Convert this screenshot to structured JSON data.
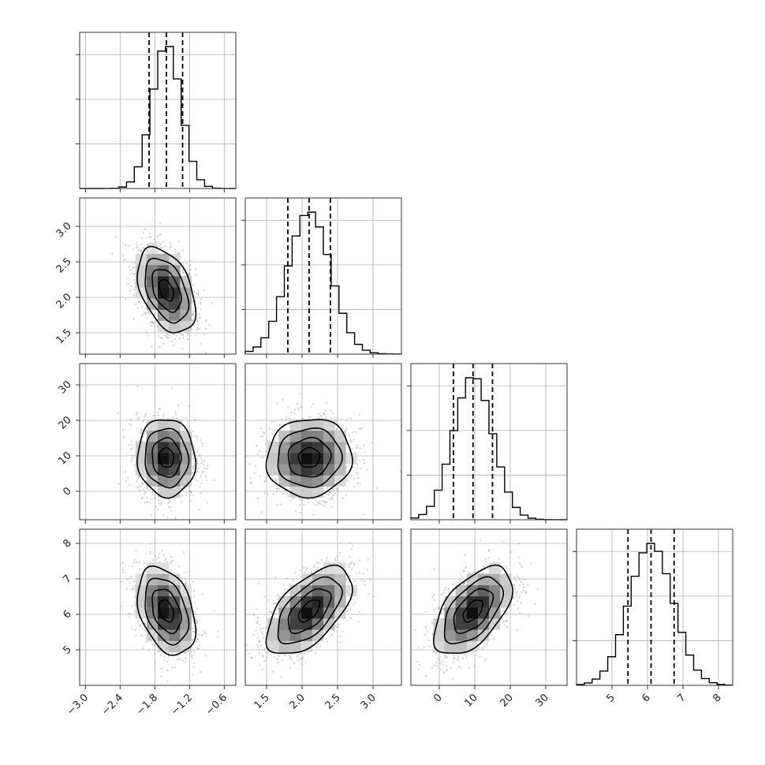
{
  "chart_data": {
    "type": "corner",
    "colors": {
      "ink": "#000000",
      "scatter": "#9a9a9a",
      "grid": "#b0b0b0"
    },
    "params": [
      {
        "mean": -1.6,
        "sd": 0.25,
        "range": [
          -3.1,
          -0.4
        ],
        "quantiles": [
          -1.9,
          -1.6,
          -1.32
        ],
        "ticks": [
          -3.0,
          -2.4,
          -1.8,
          -1.2,
          -0.6
        ],
        "tick_labels": [
          "−3.0",
          "−2.4",
          "−1.8",
          "−1.2",
          "−0.6"
        ]
      },
      {
        "mean": 2.1,
        "sd": 0.3,
        "range": [
          1.2,
          3.4
        ],
        "quantiles": [
          1.8,
          2.1,
          2.4
        ],
        "ticks": [
          1.5,
          2.0,
          2.5,
          3.0
        ],
        "tick_labels": [
          "1.5",
          "2.0",
          "2.5",
          "3.0"
        ]
      },
      {
        "mean": 9.5,
        "sd": 5.5,
        "range": [
          -8,
          36
        ],
        "quantiles": [
          4.0,
          9.5,
          15.0
        ],
        "ticks": [
          0,
          10,
          20,
          30
        ],
        "tick_labels": [
          "0",
          "10",
          "20",
          "30"
        ]
      },
      {
        "mean": 6.1,
        "sd": 0.62,
        "range": [
          4.0,
          8.4
        ],
        "quantiles": [
          5.45,
          6.1,
          6.75
        ],
        "ticks": [
          5,
          6,
          7,
          8
        ],
        "tick_labels": [
          "5",
          "6",
          "7",
          "8"
        ]
      }
    ],
    "correlations": [
      [
        1.0,
        -0.42,
        -0.05,
        -0.35
      ],
      [
        -0.42,
        1.0,
        0.05,
        0.58
      ],
      [
        -0.05,
        0.05,
        1.0,
        0.55
      ],
      [
        -0.35,
        0.58,
        0.55,
        1.0
      ]
    ],
    "contour_levels": [
      0.5,
      1.0,
      1.5,
      2.0
    ]
  }
}
